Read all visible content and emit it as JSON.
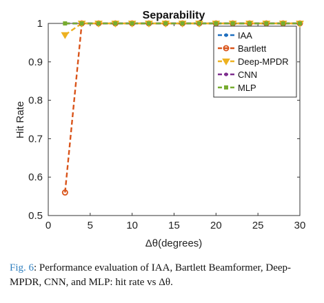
{
  "caption": {
    "label": "Fig. 6",
    "text": ": Performance evaluation of IAA, Bartlett Beamformer, Deep-MPDR, CNN, and MLP: hit rate vs Δθ."
  },
  "chart_data": {
    "type": "line",
    "title": "Separability",
    "xlabel": "Δθ(degrees)",
    "ylabel": "Hit Rate",
    "xlim": [
      0,
      30
    ],
    "ylim": [
      0.5,
      1
    ],
    "xticks": [
      0,
      5,
      10,
      15,
      20,
      25,
      30
    ],
    "yticks": [
      0.5,
      0.6,
      0.7,
      0.8,
      0.9,
      1
    ],
    "ytick_labels": [
      "0.5",
      "0.6",
      "0.7",
      "0.8",
      "0.9",
      "1"
    ],
    "grid": false,
    "legend_position": "top-right",
    "series": [
      {
        "name": "IAA",
        "color": "#1f6fbf",
        "marker": "dot",
        "x": [
          2,
          4,
          6,
          8,
          10,
          12,
          14,
          16,
          18,
          20,
          22,
          24,
          26,
          28,
          30
        ],
        "y": [
          1,
          1,
          1,
          1,
          1,
          1,
          1,
          1,
          1,
          1,
          1,
          1,
          1,
          1,
          1
        ]
      },
      {
        "name": "Bartlett",
        "color": "#d9541a",
        "marker": "circle",
        "x": [
          2,
          4,
          6,
          8,
          10,
          12,
          14,
          16,
          18,
          20,
          22,
          24,
          26,
          28,
          30
        ],
        "y": [
          0.56,
          1,
          1,
          1,
          1,
          1,
          1,
          1,
          1,
          1,
          1,
          1,
          1,
          1,
          1
        ]
      },
      {
        "name": "Deep-MPDR",
        "color": "#edb120",
        "marker": "triangle",
        "x": [
          2,
          4,
          6,
          8,
          10,
          12,
          14,
          16,
          18,
          20,
          22,
          24,
          26,
          28,
          30
        ],
        "y": [
          0.97,
          1,
          1,
          1,
          1,
          1,
          1,
          1,
          1,
          1,
          1,
          1,
          1,
          1,
          1
        ]
      },
      {
        "name": "CNN",
        "color": "#7e2f8e",
        "marker": "dot",
        "x": [
          2,
          4,
          6,
          8,
          10,
          12,
          14,
          16,
          18,
          20,
          22,
          24,
          26,
          28,
          30
        ],
        "y": [
          1,
          1,
          1,
          1,
          1,
          1,
          1,
          1,
          1,
          1,
          1,
          1,
          1,
          1,
          1
        ]
      },
      {
        "name": "MLP",
        "color": "#77ac30",
        "marker": "square",
        "x": [
          2,
          4,
          6,
          8,
          10,
          12,
          14,
          16,
          18,
          20,
          22,
          24,
          26,
          28,
          30
        ],
        "y": [
          1,
          1,
          1,
          1,
          1,
          1,
          1,
          1,
          1,
          1,
          1,
          1,
          1,
          1,
          1
        ]
      }
    ]
  }
}
